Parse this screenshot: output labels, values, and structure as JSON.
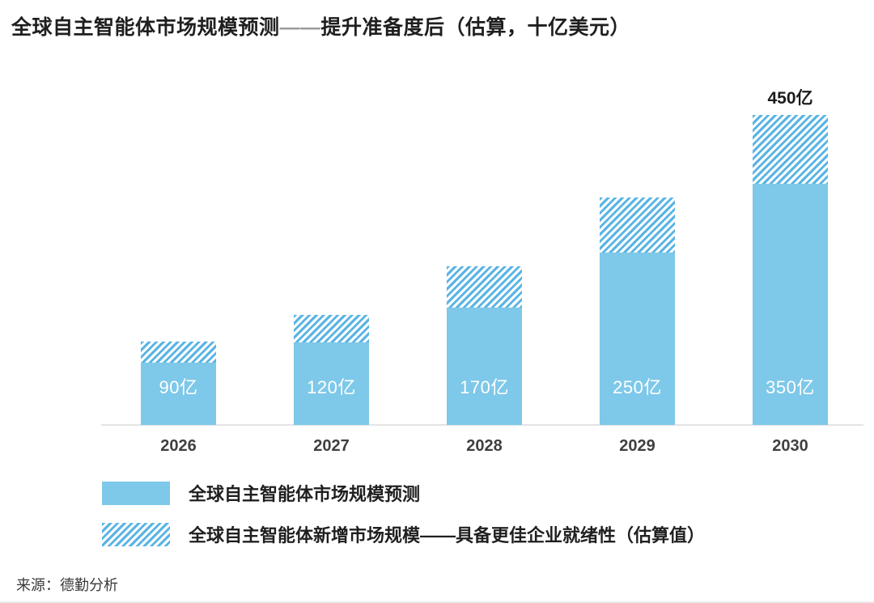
{
  "title": {
    "part1": "全球自主智能体市场规模预测",
    "dash": "——",
    "part2": "提升准备度后（估算，十亿美元）"
  },
  "chart_data": {
    "type": "bar",
    "stacked": true,
    "orientation": "vertical",
    "categories": [
      "2026",
      "2027",
      "2028",
      "2029",
      "2030"
    ],
    "series": [
      {
        "name": "全球自主智能体市场规模预测",
        "pattern": "solid",
        "color": "#7EC8E9",
        "values": [
          90,
          120,
          170,
          250,
          350
        ],
        "bar_labels": [
          "90亿",
          "120亿",
          "170亿",
          "250亿",
          "350亿"
        ]
      },
      {
        "name": "全球自主智能体新增市场规模——具备更佳企业就绪性（估算值）",
        "pattern": "diagonal-hatch",
        "color": "#58B4E4",
        "hatch_gap_color": "#FFFFFF",
        "values": [
          30,
          40,
          60,
          80,
          100
        ]
      }
    ],
    "total_labels": [
      "",
      "",
      "",
      "",
      "450亿"
    ],
    "totals": [
      120,
      160,
      230,
      330,
      450
    ],
    "xlabel": "",
    "ylabel": "",
    "ylim": [
      0,
      470
    ],
    "grid": false,
    "y_axis_visible": false,
    "legend_position": "bottom-left",
    "value_label_color": "#FFFFFF",
    "tick_label_color": "#3F3F3F",
    "axis_line_color": "#E4E4E4"
  },
  "legend": {
    "items": [
      {
        "label": "全球自主智能体市场规模预测",
        "swatch": "solid"
      },
      {
        "label": "全球自主智能体新增市场规模——具备更佳企业就绪性（估算值）",
        "swatch": "diagonal-hatch"
      }
    ]
  },
  "source": "来源：德勤分析"
}
